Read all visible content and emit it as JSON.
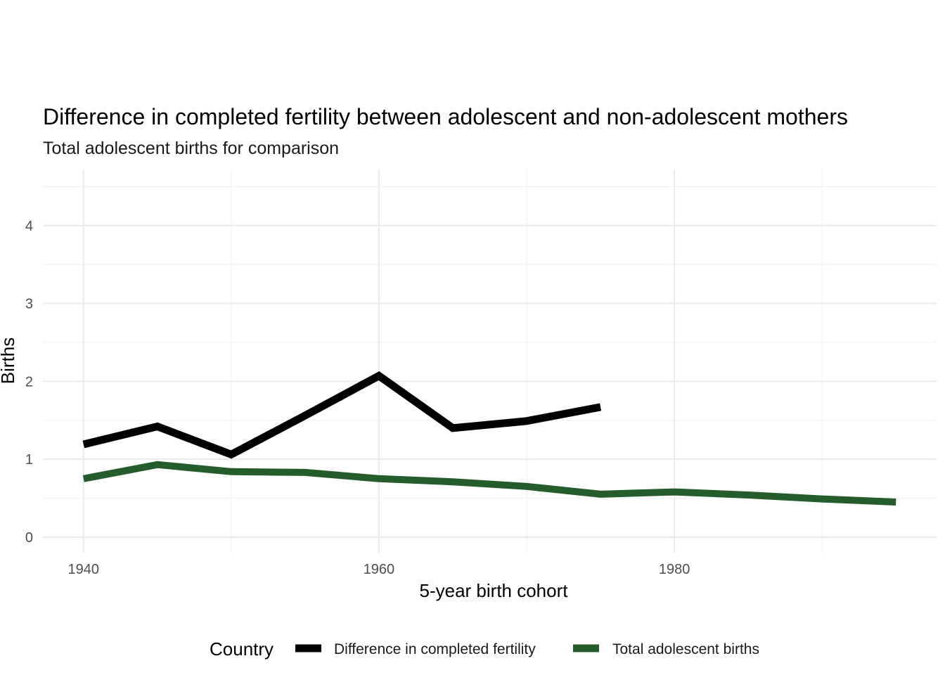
{
  "chart_data": {
    "type": "line",
    "title": "Difference in completed fertility between adolescent and non-adolescent mothers",
    "subtitle": "Total adolescent births for comparison",
    "xlabel": "5-year birth cohort",
    "ylabel": "Births",
    "xlim": [
      1937.25,
      1997.75
    ],
    "ylim": [
      -0.2,
      4.72
    ],
    "x_ticks": [
      1940,
      1960,
      1980
    ],
    "y_ticks": [
      0,
      1,
      2,
      3,
      4
    ],
    "grid": true,
    "legend": {
      "title": "Country",
      "position": "bottom"
    },
    "series": [
      {
        "name": "Difference in completed fertility",
        "color": "#000000",
        "points": [
          {
            "x": 1940,
            "y": 1.19
          },
          {
            "x": 1945,
            "y": 1.42
          },
          {
            "x": 1950,
            "y": 1.06
          },
          {
            "x": 1955,
            "y": 1.56
          },
          {
            "x": 1960,
            "y": 2.07
          },
          {
            "x": 1965,
            "y": 1.4
          },
          {
            "x": 1970,
            "y": 1.49
          },
          {
            "x": 1975,
            "y": 1.67
          }
        ]
      },
      {
        "name": "Total adolescent births",
        "color": "#245c2c",
        "points": [
          {
            "x": 1940,
            "y": 0.75
          },
          {
            "x": 1945,
            "y": 0.93
          },
          {
            "x": 1950,
            "y": 0.84
          },
          {
            "x": 1955,
            "y": 0.83
          },
          {
            "x": 1960,
            "y": 0.75
          },
          {
            "x": 1965,
            "y": 0.71
          },
          {
            "x": 1970,
            "y": 0.65
          },
          {
            "x": 1975,
            "y": 0.55
          },
          {
            "x": 1980,
            "y": 0.58
          },
          {
            "x": 1985,
            "y": 0.54
          },
          {
            "x": 1990,
            "y": 0.49
          },
          {
            "x": 1995,
            "y": 0.45
          }
        ]
      }
    ]
  }
}
